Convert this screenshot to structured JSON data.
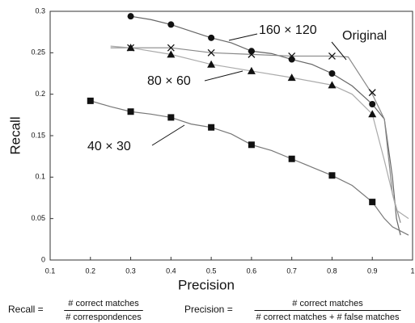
{
  "chart_data": {
    "type": "scatter-line",
    "x_label": "Precision",
    "y_label": "Recall",
    "xlim": [
      0.1,
      1
    ],
    "xticks": [
      0.1,
      0.2,
      0.3,
      0.4,
      0.5,
      0.6,
      0.7,
      0.8,
      0.9,
      1
    ],
    "ylim": [
      0,
      0.3
    ],
    "yticks": [
      0,
      0.05,
      0.1,
      0.15,
      0.2,
      0.25,
      0.3
    ],
    "series": [
      {
        "name": "160 × 120",
        "marker": "circle",
        "color": "#666666",
        "x": [
          0.3,
          0.4,
          0.5,
          0.6,
          0.7,
          0.8,
          0.9
        ],
        "values": [
          0.294,
          0.284,
          0.268,
          0.252,
          0.242,
          0.225,
          0.188
        ],
        "curve": {
          "x": [
            0.3,
            0.35,
            0.4,
            0.45,
            0.5,
            0.55,
            0.6,
            0.65,
            0.7,
            0.75,
            0.8,
            0.85,
            0.9,
            0.93,
            0.95,
            0.96,
            0.97
          ],
          "values": [
            0.294,
            0.29,
            0.284,
            0.276,
            0.268,
            0.262,
            0.252,
            0.249,
            0.242,
            0.236,
            0.225,
            0.21,
            0.188,
            0.17,
            0.1,
            0.05,
            0.03
          ]
        }
      },
      {
        "name": "Original",
        "marker": "x",
        "color": "#888888",
        "x": [
          0.3,
          0.4,
          0.5,
          0.6,
          0.7,
          0.8,
          0.9
        ],
        "values": [
          0.256,
          0.256,
          0.25,
          0.248,
          0.246,
          0.246,
          0.202
        ],
        "curve": {
          "x": [
            0.25,
            0.3,
            0.4,
            0.5,
            0.6,
            0.7,
            0.8,
            0.84,
            0.9,
            0.93,
            0.95,
            0.97
          ],
          "values": [
            0.256,
            0.256,
            0.256,
            0.25,
            0.248,
            0.246,
            0.246,
            0.245,
            0.2,
            0.17,
            0.08,
            0.045
          ]
        }
      },
      {
        "name": "80 × 60",
        "marker": "triangle",
        "color": "#aaaaaa",
        "x": [
          0.3,
          0.4,
          0.5,
          0.6,
          0.7,
          0.8,
          0.9
        ],
        "values": [
          0.256,
          0.248,
          0.236,
          0.228,
          0.22,
          0.211,
          0.176
        ],
        "curve": {
          "x": [
            0.25,
            0.3,
            0.4,
            0.5,
            0.6,
            0.7,
            0.8,
            0.85,
            0.9,
            0.93,
            0.96,
            0.99
          ],
          "values": [
            0.258,
            0.256,
            0.248,
            0.236,
            0.228,
            0.22,
            0.211,
            0.2,
            0.176,
            0.12,
            0.06,
            0.05
          ]
        }
      },
      {
        "name": "40 × 30",
        "marker": "square",
        "color": "#777777",
        "x": [
          0.2,
          0.3,
          0.4,
          0.5,
          0.6,
          0.7,
          0.8,
          0.9
        ],
        "values": [
          0.192,
          0.179,
          0.172,
          0.16,
          0.139,
          0.122,
          0.102,
          0.07
        ],
        "curve": {
          "x": [
            0.2,
            0.25,
            0.3,
            0.35,
            0.4,
            0.45,
            0.5,
            0.55,
            0.6,
            0.65,
            0.7,
            0.75,
            0.8,
            0.85,
            0.9,
            0.93,
            0.95,
            0.99
          ],
          "values": [
            0.192,
            0.185,
            0.179,
            0.176,
            0.172,
            0.164,
            0.16,
            0.152,
            0.139,
            0.132,
            0.122,
            0.112,
            0.102,
            0.09,
            0.07,
            0.05,
            0.04,
            0.03
          ]
        }
      }
    ],
    "formulas": [
      {
        "lhs": "Recall =",
        "numerator": "# correct matches",
        "denominator": "# correspondences"
      },
      {
        "lhs": "Precision =",
        "numerator": "# correct matches",
        "denominator": "# correct matches + # false matches"
      }
    ]
  }
}
